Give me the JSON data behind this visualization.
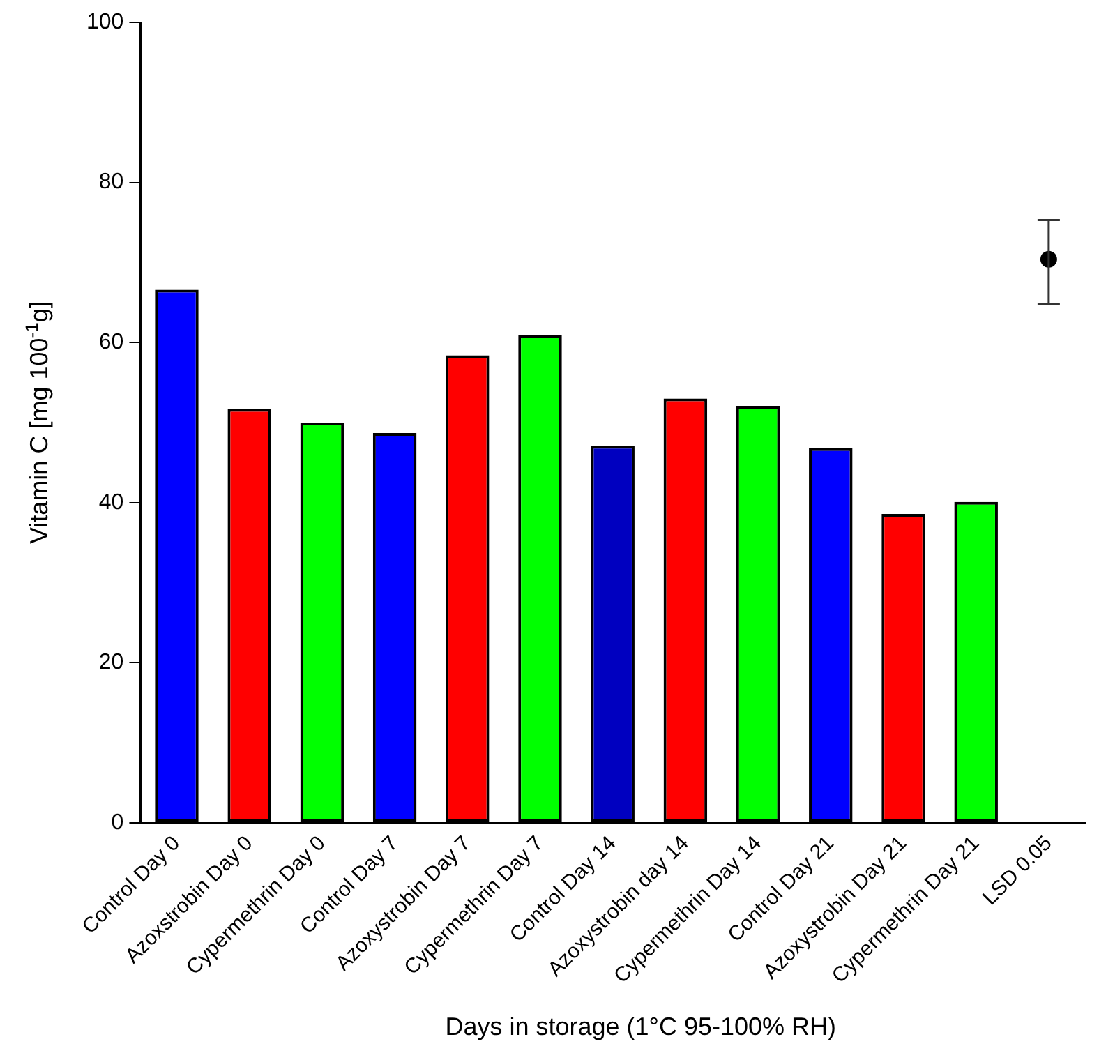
{
  "chart_data": {
    "type": "bar",
    "xlabel": "Days in storage (1°C 95-100% RH)",
    "ylabel": "Vitamin C [mg 100$^{-1}$g]",
    "categories": [
      "Control Day 0",
      "Azoxstrobin Day 0",
      "Cypermethrin Day 0",
      "Control Day 7",
      "Azoxystrobin Day 7",
      "Cypermethrin Day 7",
      "Control Day 14",
      "Azoxystrobin day 14",
      "Cypermethrin Day 14",
      "Control Day 21",
      "Azoxystrobin Day 21",
      "Cypermethrin Day 21",
      "LSD 0.05"
    ],
    "series": [
      {
        "colors": [
          "#0000ff",
          "#ff0000",
          "#00ff00",
          "#0000ff",
          "#ff0000",
          "#00ff00",
          "#0000c0",
          "#ff0000",
          "#00ff00",
          "#0000ff",
          "#ff0000",
          "#00ff00",
          null
        ],
        "values": [
          66.6,
          51.7,
          50.0,
          48.7,
          58.4,
          60.9,
          47.1,
          53.0,
          52.1,
          46.8,
          38.6,
          40.1,
          null
        ]
      },
      {
        "type": "scatter",
        "color": "#000000",
        "x": [
          "LSD 0.05"
        ],
        "values": [
          70.4
        ],
        "errors": [
          [
            64.8,
            75.3
          ]
        ],
        "marker": "circle"
      }
    ],
    "ylim": [
      0,
      100
    ],
    "yticks": [
      0,
      20,
      40,
      60,
      80,
      100
    ],
    "grid": false,
    "legend": false
  }
}
